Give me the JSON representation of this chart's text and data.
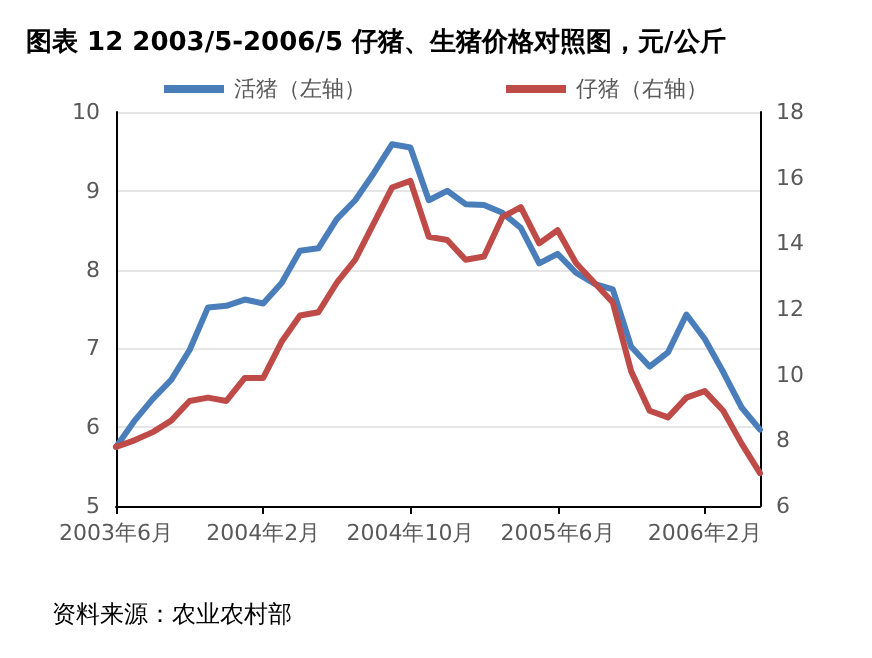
{
  "chart_data": {
    "type": "line",
    "title": "图表 12 2003/5-2006/5 仔猪、生猪价格对照图，元/公斤",
    "categories": [
      "2003年6月",
      null,
      null,
      null,
      null,
      null,
      null,
      null,
      "2004年2月",
      null,
      null,
      null,
      null,
      null,
      null,
      null,
      "2004年10月",
      null,
      null,
      null,
      null,
      null,
      null,
      null,
      "2005年6月",
      null,
      null,
      null,
      null,
      null,
      null,
      null,
      "2006年2月",
      null,
      null,
      null
    ],
    "series": [
      {
        "name": "活猪（左轴）",
        "color": "#4a7ebb",
        "values": [
          5.75,
          6.08,
          6.36,
          6.6,
          6.98,
          7.52,
          7.54,
          7.62,
          7.57,
          7.83,
          8.24,
          8.27,
          8.64,
          8.88,
          9.22,
          9.59,
          9.55,
          8.88,
          9.0,
          8.83,
          8.82,
          8.72,
          8.53,
          8.08,
          8.2,
          7.96,
          7.82,
          7.75,
          7.02,
          6.77,
          6.95,
          7.43,
          7.12,
          6.7,
          6.25,
          5.97
        ]
      },
      {
        "name": "仔猪（右轴）",
        "color": "#be4b48",
        "axis": "y2",
        "values": [
          7.8,
          8.0,
          8.25,
          8.6,
          9.2,
          9.3,
          9.2,
          9.9,
          9.9,
          11.0,
          11.8,
          11.9,
          12.8,
          13.5,
          14.6,
          15.7,
          15.9,
          14.2,
          14.1,
          13.5,
          13.6,
          14.8,
          15.1,
          14.0,
          14.4,
          13.4,
          12.8,
          12.2,
          10.1,
          8.9,
          8.7,
          9.3,
          9.5,
          8.9,
          7.9,
          7.0
        ]
      }
    ],
    "ylim": [
      5,
      10
    ],
    "yticks": [
      5,
      6,
      7,
      8,
      9,
      10
    ],
    "y2lim": [
      6,
      18
    ],
    "y2ticks": [
      6,
      8,
      10,
      12,
      14,
      16,
      18
    ],
    "grid": "y",
    "legend": "top",
    "marker": "none",
    "line_style": "solid",
    "annotations": [
      "资料来源：农业农村部"
    ]
  }
}
